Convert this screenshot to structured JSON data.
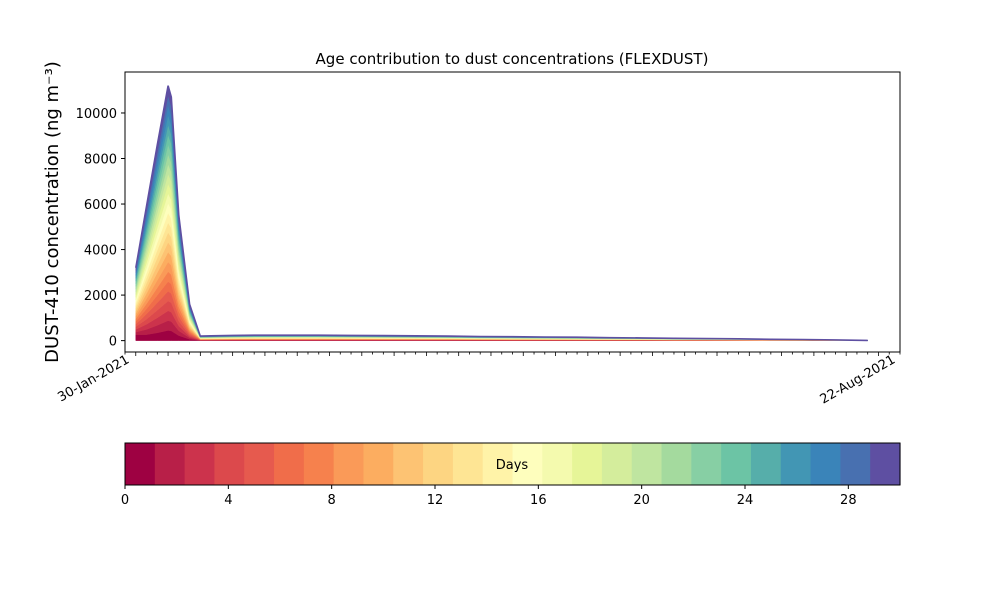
{
  "chart_data": {
    "type": "area",
    "title": "Age contribution to dust concentrations (FLEXDUST)",
    "ylabel": "DUST-410 concentration (ng m⁻³)",
    "xlabel": "",
    "ylim": [
      -500,
      11800
    ],
    "yticks": [
      0,
      2000,
      4000,
      6000,
      8000,
      10000
    ],
    "stacked": true,
    "x_first_label": "30-Jan-2021",
    "x_last_label": "22-Aug-2021",
    "x": [
      1,
      2,
      3,
      4,
      4.3,
      5,
      6,
      7,
      8,
      10,
      12,
      15,
      18,
      21,
      24,
      27,
      30,
      33,
      36,
      39,
      42,
      45,
      48,
      51,
      54,
      57,
      60,
      63,
      66,
      69
    ],
    "total": [
      3200,
      5900,
      8600,
      11200,
      10700,
      5500,
      1600,
      200,
      210,
      230,
      240,
      240,
      240,
      230,
      220,
      210,
      200,
      180,
      170,
      160,
      150,
      130,
      120,
      100,
      90,
      80,
      60,
      50,
      30,
      10
    ],
    "layer_profile": [
      0.08,
      0.045,
      0.04,
      0.04,
      0.04,
      0.04,
      0.04,
      0.04,
      0.04,
      0.04,
      0.04,
      0.04,
      0.04,
      0.04,
      0.04,
      0.04,
      0.04,
      0.035,
      0.03,
      0.03,
      0.03,
      0.03,
      0.025,
      0.025,
      0.025,
      0.025,
      0.02,
      0.02,
      0.015,
      0.015
    ],
    "colorbar": {
      "label": "Days",
      "min": 0,
      "max": 30,
      "ticks": [
        0,
        4,
        8,
        12,
        16,
        20,
        24,
        28
      ],
      "colors": [
        "#9e0142",
        "#b81f48",
        "#cc334c",
        "#dc494c",
        "#e65a4e",
        "#f06d4a",
        "#f6814d",
        "#fa9a58",
        "#fcad60",
        "#fdc373",
        "#fdd582",
        "#fee594",
        "#fff3a8",
        "#fefebd",
        "#f4faae",
        "#e6f598",
        "#d4ed9c",
        "#bfe5a0",
        "#a4da9e",
        "#87cfa4",
        "#6cc4a5",
        "#56aeaa",
        "#4296b4",
        "#3a84b9",
        "#4870b0",
        "#5e4fa2"
      ]
    }
  }
}
